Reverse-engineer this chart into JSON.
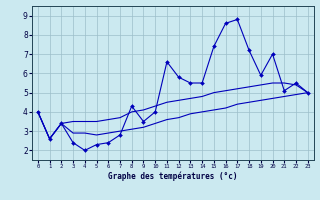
{
  "xlabel": "Graphe des températures (°c)",
  "bg_color": "#cbe9f0",
  "line_color": "#0000bb",
  "grid_color": "#9dbfca",
  "xlim": [
    -0.5,
    23.5
  ],
  "ylim": [
    1.5,
    9.5
  ],
  "yticks": [
    2,
    3,
    4,
    5,
    6,
    7,
    8,
    9
  ],
  "xticks": [
    0,
    1,
    2,
    3,
    4,
    5,
    6,
    7,
    8,
    9,
    10,
    11,
    12,
    13,
    14,
    15,
    16,
    17,
    18,
    19,
    20,
    21,
    22,
    23
  ],
  "series1_x": [
    0,
    1,
    2,
    3,
    4,
    5,
    6,
    7,
    8,
    9,
    10,
    11,
    12,
    13,
    14,
    15,
    16,
    17,
    18,
    19,
    20,
    21,
    22,
    23
  ],
  "series1_y": [
    4.0,
    2.6,
    3.4,
    2.4,
    2.0,
    2.3,
    2.4,
    2.8,
    4.3,
    3.5,
    4.0,
    6.6,
    5.8,
    5.5,
    5.5,
    7.4,
    8.6,
    8.8,
    7.2,
    5.9,
    7.0,
    5.1,
    5.5,
    5.0
  ],
  "series2_x": [
    0,
    1,
    2,
    3,
    4,
    5,
    6,
    7,
    8,
    9,
    10,
    11,
    12,
    13,
    14,
    15,
    16,
    17,
    18,
    19,
    20,
    21,
    22,
    23
  ],
  "series2_y": [
    4.0,
    2.6,
    3.4,
    3.5,
    3.5,
    3.5,
    3.6,
    3.7,
    4.0,
    4.1,
    4.3,
    4.5,
    4.6,
    4.7,
    4.8,
    5.0,
    5.1,
    5.2,
    5.3,
    5.4,
    5.5,
    5.5,
    5.4,
    5.0
  ],
  "series3_x": [
    0,
    1,
    2,
    3,
    4,
    5,
    6,
    7,
    8,
    9,
    10,
    11,
    12,
    13,
    14,
    15,
    16,
    17,
    18,
    19,
    20,
    21,
    22,
    23
  ],
  "series3_y": [
    4.0,
    2.6,
    3.4,
    2.9,
    2.9,
    2.8,
    2.9,
    3.0,
    3.1,
    3.2,
    3.4,
    3.6,
    3.7,
    3.9,
    4.0,
    4.1,
    4.2,
    4.4,
    4.5,
    4.6,
    4.7,
    4.8,
    4.9,
    5.0
  ]
}
